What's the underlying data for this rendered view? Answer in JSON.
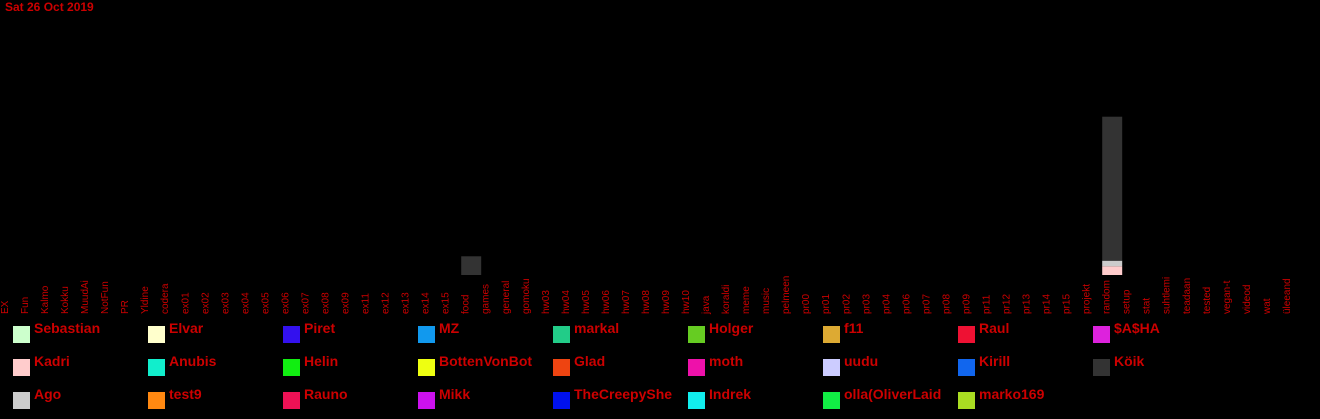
{
  "header": {
    "date": "Sat 26 Oct 2019"
  },
  "chart_data": {
    "type": "bar",
    "stacked": true,
    "title": "",
    "xlabel": "",
    "ylabel": "",
    "ylim": [
      0,
      145
    ],
    "grid": false,
    "legend_placement": "bottom",
    "categories": [
      "EX",
      "Fun",
      "Kalmo",
      "Kokku",
      "MuudAi",
      "NotFun",
      "PR",
      "Yldine",
      "codera",
      "ex01",
      "ex02",
      "ex03",
      "ex04",
      "ex05",
      "ex06",
      "ex07",
      "ex08",
      "ex09",
      "ex11",
      "ex12",
      "ex13",
      "ex14",
      "ex15",
      "food",
      "games",
      "general",
      "gomoku",
      "hw03",
      "hw04",
      "hw05",
      "hw06",
      "hw07",
      "hw08",
      "hw09",
      "hw10",
      "java",
      "koraldi",
      "meme",
      "music",
      "pelmeen",
      "pr00",
      "pr01",
      "pr02",
      "pr03",
      "pr04",
      "pr06",
      "pr07",
      "pr08",
      "pr09",
      "pr11",
      "pr12",
      "pr13",
      "pr14",
      "pr15",
      "projekt",
      "random",
      "setup",
      "stat",
      "suhtlemi",
      "teadaan",
      "tested",
      "vegan-t",
      "videod",
      "wat",
      "üleeand"
    ],
    "series": [
      {
        "name": "Kadri",
        "color": "#ffcccc",
        "values": [
          0,
          0,
          0,
          0,
          0,
          0,
          0,
          0,
          0,
          0,
          0,
          0,
          0,
          0,
          0,
          0,
          0,
          0,
          0,
          0,
          0,
          0,
          0,
          0,
          0,
          0,
          0,
          0,
          0,
          0,
          0,
          0,
          0,
          0,
          0,
          0,
          0,
          0,
          0,
          0,
          0,
          0,
          0,
          0,
          0,
          0,
          0,
          0,
          0,
          0,
          0,
          0,
          0,
          0,
          0,
          8,
          0,
          0,
          0,
          0,
          0,
          0,
          0,
          0,
          0
        ]
      },
      {
        "name": "Ago",
        "color": "#cccccc",
        "values": [
          0,
          0,
          0,
          0,
          0,
          0,
          0,
          0,
          0,
          0,
          0,
          0,
          0,
          0,
          0,
          0,
          0,
          0,
          0,
          0,
          0,
          0,
          0,
          0,
          0,
          0,
          0,
          0,
          0,
          0,
          0,
          0,
          0,
          0,
          0,
          0,
          0,
          0,
          0,
          0,
          0,
          0,
          0,
          0,
          0,
          0,
          0,
          0,
          0,
          0,
          0,
          0,
          0,
          0,
          0,
          5,
          0,
          0,
          0,
          0,
          0,
          0,
          0,
          0,
          0
        ]
      },
      {
        "name": "Köik",
        "color": "#333333",
        "values": [
          0,
          0,
          0,
          0,
          0,
          0,
          0,
          0,
          0,
          0,
          0,
          0,
          0,
          0,
          0,
          0,
          0,
          0,
          0,
          0,
          0,
          0,
          0,
          17,
          0,
          0,
          0,
          0,
          0,
          0,
          0,
          0,
          0,
          0,
          0,
          0,
          0,
          0,
          0,
          0,
          0,
          0,
          0,
          0,
          0,
          0,
          0,
          0,
          0,
          0,
          0,
          0,
          0,
          0,
          0,
          131,
          0,
          0,
          0,
          0,
          0,
          0,
          0,
          0,
          0
        ]
      }
    ],
    "legend": [
      {
        "name": "Sebastian",
        "color": "#ccffcc"
      },
      {
        "name": "Elvar",
        "color": "#ffffcc"
      },
      {
        "name": "Piret",
        "color": "#3311ee"
      },
      {
        "name": "MZ",
        "color": "#1199ee"
      },
      {
        "name": "markal",
        "color": "#22cc88"
      },
      {
        "name": "Holger",
        "color": "#66cc22"
      },
      {
        "name": "f11",
        "color": "#ddaa33"
      },
      {
        "name": "Raul",
        "color": "#ee1133"
      },
      {
        "name": "$A$HA",
        "color": "#dd22dd"
      },
      {
        "name": "Kadri",
        "color": "#ffcccc"
      },
      {
        "name": "Anubis",
        "color": "#11eecc"
      },
      {
        "name": "Helin",
        "color": "#11ee11"
      },
      {
        "name": "BottenVonBot",
        "color": "#eeff11"
      },
      {
        "name": "Glad",
        "color": "#ee4411"
      },
      {
        "name": "moth",
        "color": "#ee11aa"
      },
      {
        "name": "uudu",
        "color": "#ccccff"
      },
      {
        "name": "Kirill",
        "color": "#1166ee"
      },
      {
        "name": "Köik",
        "color": "#333333"
      },
      {
        "name": "Ago",
        "color": "#cccccc"
      },
      {
        "name": "test9",
        "color": "#ff8811"
      },
      {
        "name": "Rauno",
        "color": "#ee1155"
      },
      {
        "name": "Mikk",
        "color": "#cc11ee"
      },
      {
        "name": "TheCreepyShe",
        "color": "#0011ee"
      },
      {
        "name": "Indrek",
        "color": "#11eeee"
      },
      {
        "name": "olla(OliverLaid",
        "color": "#11ee44"
      },
      {
        "name": "marko169",
        "color": "#aadd22"
      }
    ]
  }
}
